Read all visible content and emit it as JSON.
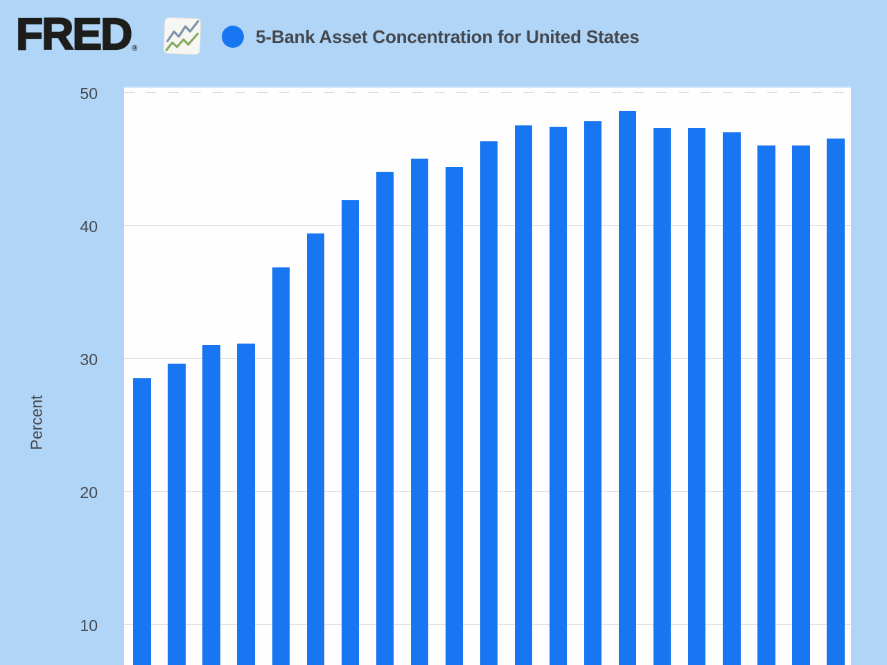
{
  "header": {
    "logo_text": "FRED",
    "logo_trademark": "®",
    "title": "5-Bank Asset Concentration for United States"
  },
  "y_axis": {
    "label": "Percent",
    "ticks": [
      "50",
      "40",
      "30",
      "20",
      "10"
    ]
  },
  "colors": {
    "background": "#b0d5f7",
    "plot_background": "#fefefe",
    "bar": "#1976f2",
    "legend_dot": "#1976f2",
    "gridline": "#e2e2e2",
    "text": "#44484e",
    "logo": "#1d1d1b",
    "icon_line_blue": "#7d93ab",
    "icon_line_green": "#85ab5e"
  },
  "chart_data": {
    "type": "bar",
    "title": "5-Bank Asset Concentration for United States",
    "xlabel": "",
    "ylabel": "Percent",
    "values": [
      28.5,
      29.6,
      31.0,
      31.1,
      36.8,
      39.4,
      41.9,
      44.0,
      45.0,
      44.4,
      46.3,
      47.5,
      47.4,
      47.8,
      48.6,
      47.3,
      47.3,
      47.0,
      46.0,
      46.0,
      46.5
    ],
    "bar_count": 21,
    "yticks": [
      50,
      40,
      30,
      20,
      10
    ],
    "ylim_top": 50,
    "grid": "horizontal-solid, top tick dashed",
    "x_axis_labels_visible": false,
    "legend_position": "top-left dot marker",
    "note_layout": "chart cropped at bottom edge; bars run past viewport"
  }
}
